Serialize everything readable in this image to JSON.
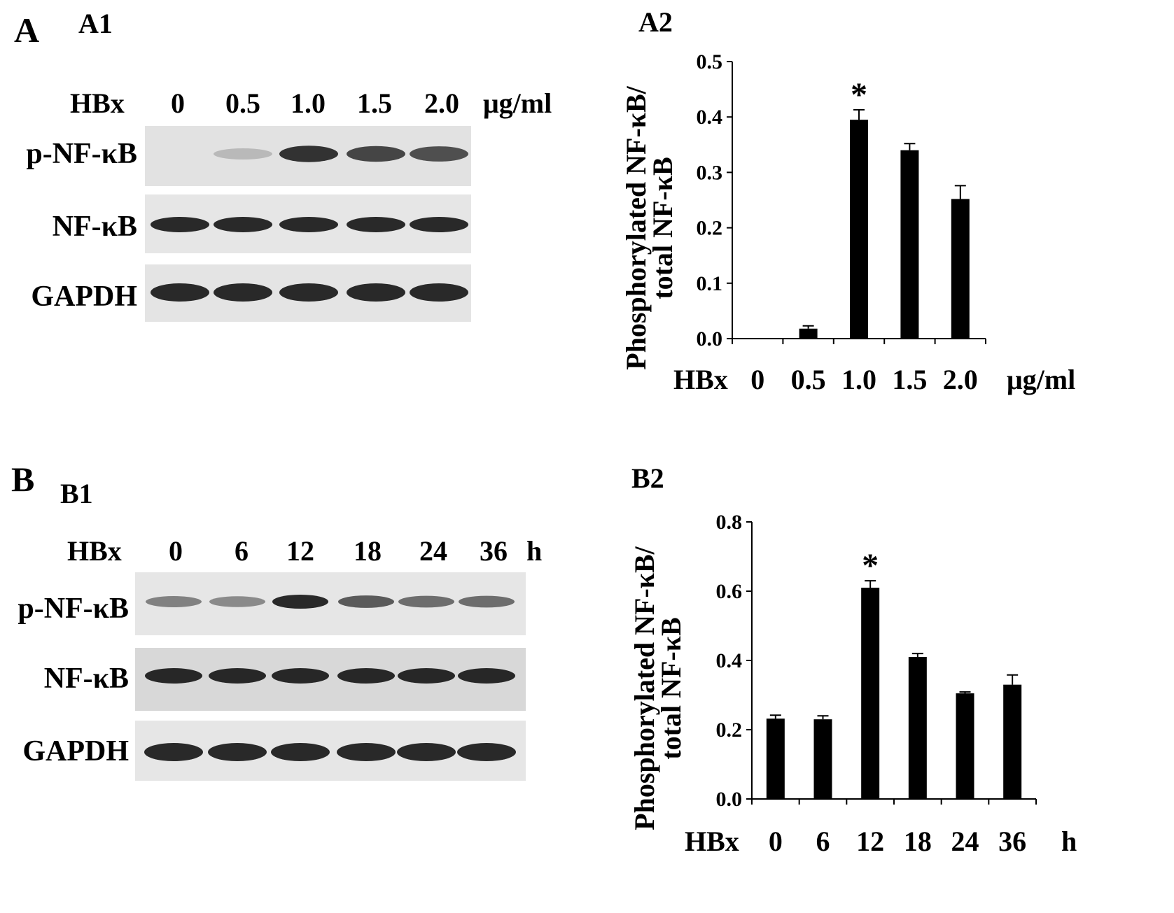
{
  "panels": {
    "A": {
      "letter": "A",
      "blot": {
        "sublabel": "A1",
        "treatment_label": "HBx",
        "lanes": [
          "0",
          "0.5",
          "1.0",
          "1.5",
          "2.0"
        ],
        "unit": "μg/ml",
        "rows": [
          "p-NF-κB",
          "NF-κB",
          "GAPDH"
        ],
        "band_intensity": {
          "p-NF-κB": [
            0.0,
            0.25,
            0.95,
            0.85,
            0.8
          ],
          "NF-κB": [
            1,
            1,
            1,
            1,
            1
          ],
          "GAPDH": [
            1,
            1,
            1,
            1,
            1
          ]
        },
        "background": [
          "#e2e2e2",
          "#e6e6e6",
          "#e4e4e4"
        ]
      }
    },
    "B": {
      "letter": "B",
      "blot": {
        "sublabel": "B1",
        "treatment_label": "HBx",
        "lanes": [
          "0",
          "6",
          "12",
          "18",
          "24",
          "36"
        ],
        "unit": "h",
        "rows": [
          "p-NF-κB",
          "NF-κB",
          "GAPDH"
        ],
        "band_intensity": {
          "p-NF-κB": [
            0.55,
            0.5,
            1.0,
            0.75,
            0.65,
            0.65
          ],
          "NF-κB": [
            1,
            1,
            1,
            1,
            1,
            1
          ],
          "GAPDH": [
            1,
            1,
            1,
            1,
            1,
            1
          ]
        },
        "background": [
          "#e6e6e6",
          "#d8d8d8",
          "#e6e6e6"
        ]
      }
    }
  },
  "chart_data": [
    {
      "id": "A2",
      "type": "bar",
      "sublabel": "A2",
      "ylabel_lines": [
        "Phosphorylated NF-κB/",
        "total NF-κB"
      ],
      "x_prefix": "HBx",
      "x_unit": "μg/ml",
      "categories": [
        "0",
        "0.5",
        "1.0",
        "1.5",
        "2.0"
      ],
      "values": [
        0.0,
        0.018,
        0.395,
        0.34,
        0.252
      ],
      "errors": [
        0.0,
        0.005,
        0.018,
        0.012,
        0.024
      ],
      "significance": [
        "",
        "",
        "*",
        "",
        ""
      ],
      "ylim": [
        0,
        0.5
      ],
      "yticks": [
        "0.0",
        "0.1",
        "0.2",
        "0.3",
        "0.4",
        "0.5"
      ],
      "bar_color": "#000000"
    },
    {
      "id": "B2",
      "type": "bar",
      "sublabel": "B2",
      "ylabel_lines": [
        "Phosphorylated NF-κB/",
        "total NF-κB"
      ],
      "x_prefix": "HBx",
      "x_unit": "h",
      "categories": [
        "0",
        "6",
        "12",
        "18",
        "24",
        "36"
      ],
      "values": [
        0.232,
        0.23,
        0.61,
        0.41,
        0.305,
        0.33
      ],
      "errors": [
        0.01,
        0.01,
        0.02,
        0.01,
        0.004,
        0.028
      ],
      "significance": [
        "",
        "",
        "*",
        "",
        "",
        ""
      ],
      "ylim": [
        0,
        0.8
      ],
      "yticks": [
        "0.0",
        "0.2",
        "0.4",
        "0.6",
        "0.8"
      ],
      "bar_color": "#000000"
    }
  ]
}
